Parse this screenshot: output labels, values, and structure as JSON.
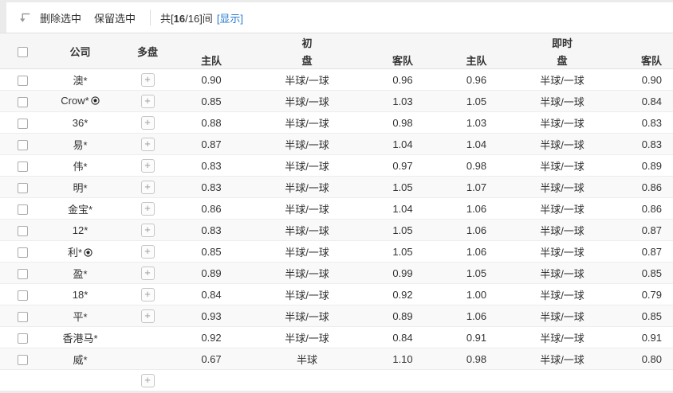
{
  "colors": {
    "link": "#2878d0",
    "header_bg": "#f6f6f6",
    "alt_row_bg": "#f9f9f9"
  },
  "toolbar": {
    "delete_selected": "删除选中",
    "keep_selected": "保留选中",
    "count_prefix": "共[",
    "count_bold": "16",
    "count_rest": "/16]间",
    "show_link": "[显示]"
  },
  "table": {
    "plus_label": "+",
    "headers": {
      "company": "公司",
      "multi": "多盘",
      "init_group": "初",
      "live_group": "即时",
      "home": "主队",
      "pan": "盘",
      "away": "客队"
    },
    "rows": [
      {
        "company": "澳*",
        "ball": false,
        "multi": true,
        "init_home": "0.90",
        "init_pan": "半球/一球",
        "init_away": "0.96",
        "live_home": "0.96",
        "live_pan": "半球/一球",
        "live_away": "0.90"
      },
      {
        "company": "Crow*",
        "ball": true,
        "multi": true,
        "init_home": "0.85",
        "init_pan": "半球/一球",
        "init_away": "1.03",
        "live_home": "1.05",
        "live_pan": "半球/一球",
        "live_away": "0.84"
      },
      {
        "company": "36*",
        "ball": false,
        "multi": true,
        "init_home": "0.88",
        "init_pan": "半球/一球",
        "init_away": "0.98",
        "live_home": "1.03",
        "live_pan": "半球/一球",
        "live_away": "0.83"
      },
      {
        "company": "易*",
        "ball": false,
        "multi": true,
        "init_home": "0.87",
        "init_pan": "半球/一球",
        "init_away": "1.04",
        "live_home": "1.04",
        "live_pan": "半球/一球",
        "live_away": "0.83"
      },
      {
        "company": "伟*",
        "ball": false,
        "multi": true,
        "init_home": "0.83",
        "init_pan": "半球/一球",
        "init_away": "0.97",
        "live_home": "0.98",
        "live_pan": "半球/一球",
        "live_away": "0.89"
      },
      {
        "company": "明*",
        "ball": false,
        "multi": true,
        "init_home": "0.83",
        "init_pan": "半球/一球",
        "init_away": "1.05",
        "live_home": "1.07",
        "live_pan": "半球/一球",
        "live_away": "0.86"
      },
      {
        "company": "金宝*",
        "ball": false,
        "multi": true,
        "init_home": "0.86",
        "init_pan": "半球/一球",
        "init_away": "1.04",
        "live_home": "1.06",
        "live_pan": "半球/一球",
        "live_away": "0.86"
      },
      {
        "company": "12*",
        "ball": false,
        "multi": true,
        "init_home": "0.83",
        "init_pan": "半球/一球",
        "init_away": "1.05",
        "live_home": "1.06",
        "live_pan": "半球/一球",
        "live_away": "0.87"
      },
      {
        "company": "利*",
        "ball": true,
        "multi": true,
        "init_home": "0.85",
        "init_pan": "半球/一球",
        "init_away": "1.05",
        "live_home": "1.06",
        "live_pan": "半球/一球",
        "live_away": "0.87"
      },
      {
        "company": "盈*",
        "ball": false,
        "multi": true,
        "init_home": "0.89",
        "init_pan": "半球/一球",
        "init_away": "0.99",
        "live_home": "1.05",
        "live_pan": "半球/一球",
        "live_away": "0.85"
      },
      {
        "company": "18*",
        "ball": false,
        "multi": true,
        "init_home": "0.84",
        "init_pan": "半球/一球",
        "init_away": "0.92",
        "live_home": "1.00",
        "live_pan": "半球/一球",
        "live_away": "0.79"
      },
      {
        "company": "平*",
        "ball": false,
        "multi": true,
        "init_home": "0.93",
        "init_pan": "半球/一球",
        "init_away": "0.89",
        "live_home": "1.06",
        "live_pan": "半球/一球",
        "live_away": "0.85"
      },
      {
        "company": "香港马*",
        "ball": false,
        "multi": false,
        "init_home": "0.92",
        "init_pan": "半球/一球",
        "init_away": "0.84",
        "live_home": "0.91",
        "live_pan": "半球/一球",
        "live_away": "0.91"
      },
      {
        "company": "威*",
        "ball": false,
        "multi": false,
        "init_home": "0.67",
        "init_pan": "半球",
        "init_away": "1.10",
        "live_home": "0.98",
        "live_pan": "半球/一球",
        "live_away": "0.80"
      }
    ],
    "partial_row": {
      "multi": true
    }
  }
}
